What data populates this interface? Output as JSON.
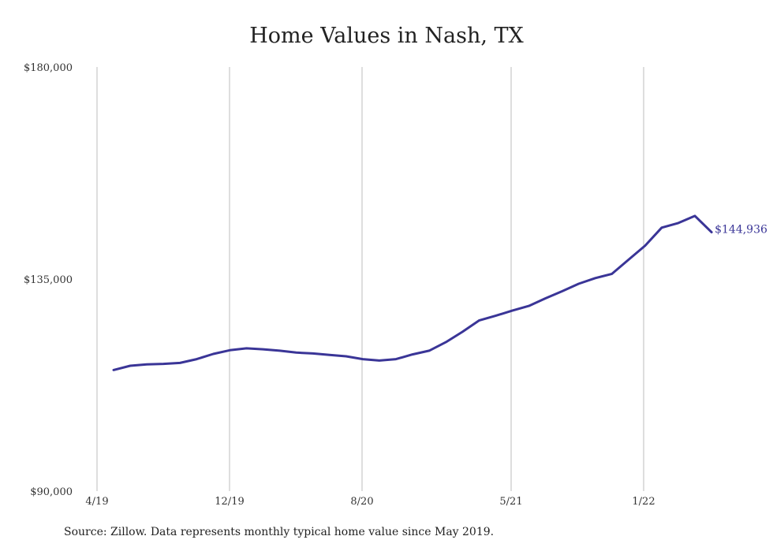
{
  "chart_data": {
    "type": "line",
    "title": "Home Values in Nash, TX",
    "xlabel": "",
    "ylabel": "",
    "x_tick_labels": [
      "4/19",
      "12/19",
      "8/20",
      "5/21",
      "1/22"
    ],
    "y_tick_labels": [
      "$180,000",
      "$135,000",
      "$90,000"
    ],
    "ylim": [
      90000,
      180000
    ],
    "grid": "vertical",
    "series": [
      {
        "x": [
          "2019-05",
          "2019-06",
          "2019-07",
          "2019-08",
          "2019-09",
          "2019-10",
          "2019-11",
          "2019-12",
          "2020-01",
          "2020-02",
          "2020-03",
          "2020-04",
          "2020-05",
          "2020-06",
          "2020-07",
          "2020-08",
          "2020-09",
          "2020-10",
          "2020-11",
          "2020-12",
          "2021-01",
          "2021-02",
          "2021-03",
          "2021-04",
          "2021-05",
          "2021-06",
          "2021-07",
          "2021-08",
          "2021-09",
          "2021-10",
          "2021-11",
          "2021-12",
          "2022-01",
          "2022-02",
          "2022-03",
          "2022-04",
          "2022-05"
        ],
        "values": [
          115700,
          116600,
          116900,
          117000,
          117200,
          118000,
          119100,
          119900,
          120300,
          120100,
          119800,
          119400,
          119200,
          118900,
          118600,
          118000,
          117700,
          118000,
          119000,
          119800,
          121600,
          123800,
          126200,
          127200,
          128300,
          129300,
          130900,
          132400,
          134000,
          135200,
          136100,
          139100,
          142100,
          145900,
          146900,
          148400,
          144936
        ]
      }
    ],
    "end_label": "$144,936",
    "line_color": "#3a3597",
    "source_note": "Source: Zillow. Data represents monthly typical home value since May 2019."
  }
}
